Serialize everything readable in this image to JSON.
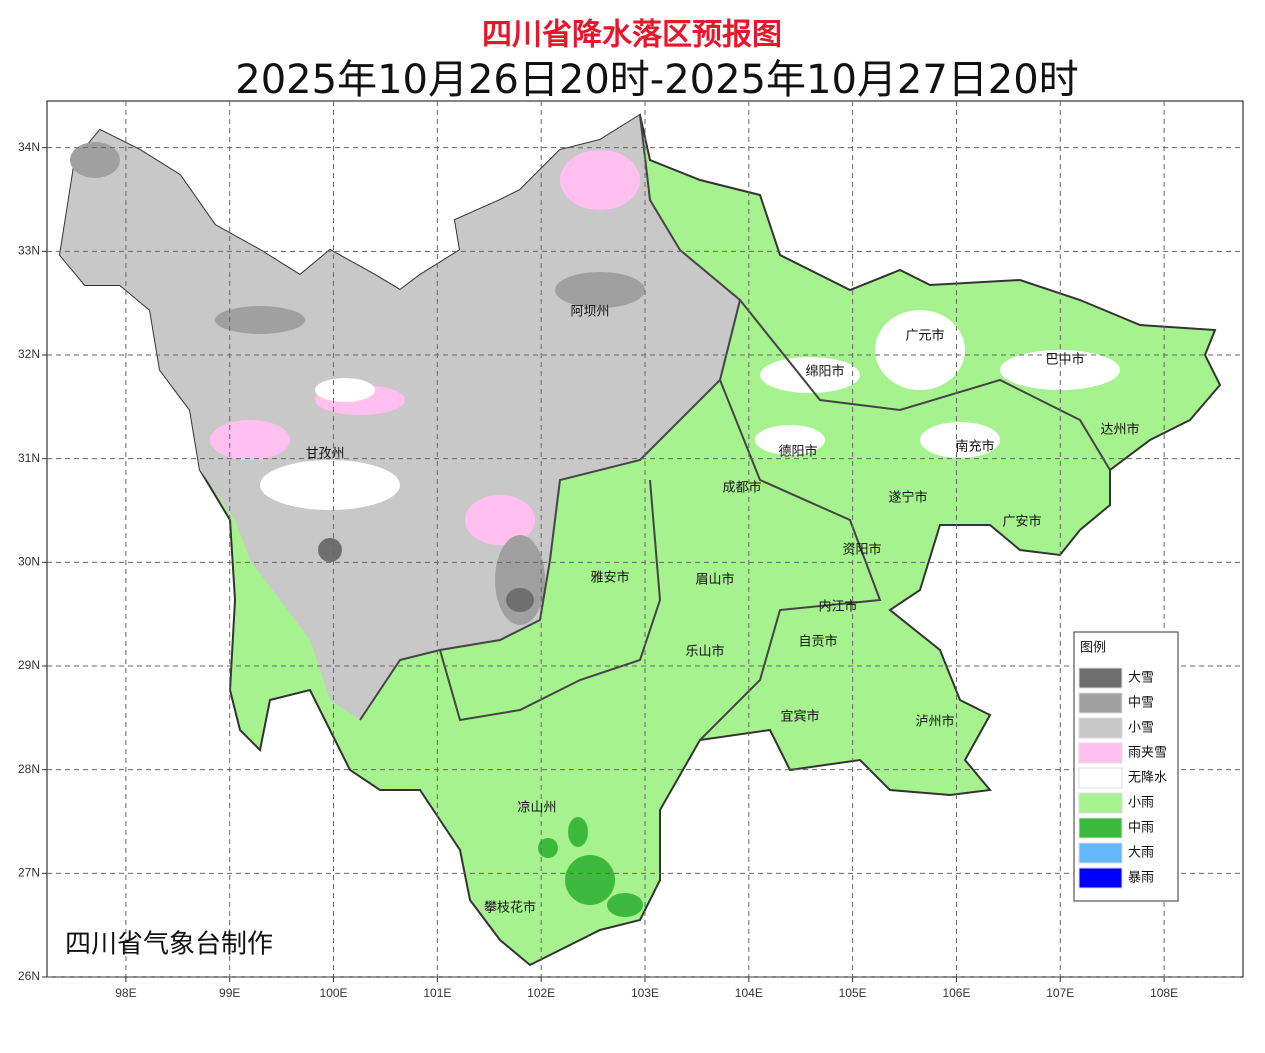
{
  "map": {
    "title": "四川省降水落区预报图",
    "subtitle": "2025年10月26日20时-2025年10月27日20时",
    "credit": "四川省气象台制作",
    "lon_range": [
      97.24,
      108.76
    ],
    "lat_range": [
      26,
      34.45
    ],
    "lon_ticks": [
      {
        "value": 98,
        "label": "98E"
      },
      {
        "value": 99,
        "label": "99E"
      },
      {
        "value": 100,
        "label": "100E"
      },
      {
        "value": 101,
        "label": "101E"
      },
      {
        "value": 102,
        "label": "102E"
      },
      {
        "value": 103,
        "label": "103E"
      },
      {
        "value": 104,
        "label": "104E"
      },
      {
        "value": 105,
        "label": "105E"
      },
      {
        "value": 106,
        "label": "106E"
      },
      {
        "value": 107,
        "label": "107E"
      },
      {
        "value": 108,
        "label": "108E"
      }
    ],
    "lat_ticks": [
      {
        "value": 26,
        "label": "26N"
      },
      {
        "value": 27,
        "label": "27N"
      },
      {
        "value": 28,
        "label": "28N"
      },
      {
        "value": 29,
        "label": "29N"
      },
      {
        "value": 30,
        "label": "30N"
      },
      {
        "value": 31,
        "label": "31N"
      },
      {
        "value": 32,
        "label": "32N"
      },
      {
        "value": 33,
        "label": "33N"
      },
      {
        "value": 34,
        "label": "34N"
      }
    ],
    "grid": true,
    "places": [
      "阿坝州",
      "甘孜州",
      "绵阳市",
      "广元市",
      "巴中市",
      "达州市",
      "南充市",
      "德阳市",
      "成都市",
      "遂宁市",
      "广安市",
      "资阳市",
      "雅安市",
      "眉山市",
      "内江市",
      "乐山市",
      "自贡市",
      "宜宾市",
      "泸州市",
      "凉山州",
      "攀枝花市"
    ],
    "legend": {
      "title": "图例",
      "items": [
        {
          "name": "大雪",
          "color": "#6e6e6e"
        },
        {
          "name": "中雪",
          "color": "#a0a0a0"
        },
        {
          "name": "小雪",
          "color": "#c8c8c8"
        },
        {
          "name": "雨夹雪",
          "color": "#ffc0f0"
        },
        {
          "name": "无降水",
          "color": "#ffffff"
        },
        {
          "name": "小雨",
          "color": "#a6f28f"
        },
        {
          "name": "中雨",
          "color": "#3dba3d"
        },
        {
          "name": "大雨",
          "color": "#61b8ff"
        },
        {
          "name": "暴雨",
          "color": "#0000ff"
        }
      ]
    }
  }
}
